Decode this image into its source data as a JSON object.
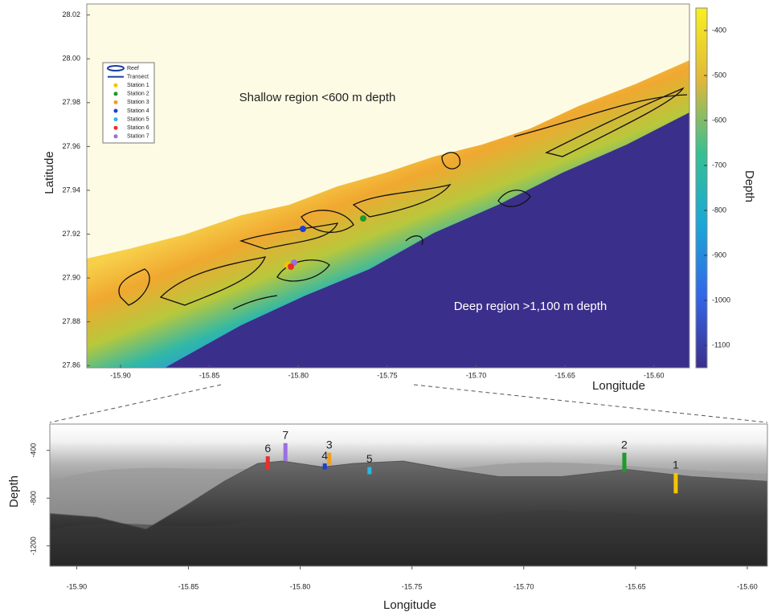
{
  "chart_data": [
    {
      "type": "heatmap",
      "xlabel": "Longitude",
      "ylabel": "Latitude",
      "colorbar_label": "Depth",
      "annotations": [
        "Shallow region <600 m depth",
        "Deep region >1,100 m depth"
      ],
      "xlim": [
        -15.919,
        -15.58
      ],
      "xticks": [
        {
          "value": -15.9,
          "label": "-15.90"
        },
        -15.85,
        {
          "value": -15.8,
          "label": "-15.80"
        },
        -15.75,
        {
          "value": -15.7,
          "label": "-15.70"
        },
        -15.65,
        {
          "value": -15.6,
          "label": "-15.60"
        }
      ],
      "ylim": [
        27.859,
        28.025
      ],
      "yticks": [
        27.86,
        27.88,
        {
          "value": 27.9,
          "label": "27.90"
        },
        27.92,
        27.94,
        27.96,
        27.98,
        {
          "value": 28,
          "label": "28.00"
        },
        28.02
      ],
      "clim": [
        -1150,
        -350
      ],
      "cticks": [
        -1100,
        -1000,
        -900,
        -800,
        -700,
        -600,
        -500,
        -400
      ],
      "legend": [
        {
          "name": "Reef",
          "color": "#1a3fa0"
        },
        {
          "name": "Transect",
          "color": "#1a3fa0"
        },
        {
          "name": "Station 1",
          "color": "#f5c400"
        },
        {
          "name": "Station 2",
          "color": "#1f9a2a"
        },
        {
          "name": "Station 3",
          "color": "#f0a020"
        },
        {
          "name": "Station 4",
          "color": "#1f3fcf"
        },
        {
          "name": "Station 5",
          "color": "#2ab8e0"
        },
        {
          "name": "Station 6",
          "color": "#e8302a"
        },
        {
          "name": "Station 7",
          "color": "#9a70e0"
        }
      ]
    },
    {
      "type": "profile",
      "xlabel": "Longitude",
      "ylabel": "Depth",
      "xlim": [
        -15.912,
        -15.591
      ],
      "xticks": [
        {
          "value": -15.9,
          "label": "-15.90"
        },
        -15.85,
        {
          "value": -15.8,
          "label": "-15.80"
        },
        -15.75,
        {
          "value": -15.7,
          "label": "-15.70"
        },
        -15.65,
        {
          "value": -15.6,
          "label": "-15.60"
        }
      ],
      "ylim": [
        -1370,
        -180
      ],
      "yticks": [
        -400,
        -800,
        -1200
      ],
      "profile": {
        "x": [
          -15.912,
          -15.891,
          -15.869,
          -15.851,
          -15.834,
          -15.819,
          -15.808,
          -15.79,
          -15.776,
          -15.754,
          -15.733,
          -15.711,
          -15.683,
          -15.654,
          -15.625,
          -15.591
        ],
        "values": [
          -930,
          -960,
          -1060,
          -860,
          -660,
          -510,
          -490,
          -540,
          -510,
          -490,
          -560,
          -620,
          -620,
          -560,
          -620,
          -660
        ]
      },
      "stations": [
        {
          "name": "1",
          "color": "#f5c400",
          "x": -15.632,
          "values": [
            -590,
            -760
          ]
        },
        {
          "name": "2",
          "color": "#1f9a2a",
          "x": -15.655,
          "values": [
            -420,
            -580
          ]
        },
        {
          "name": "3",
          "color": "#f0a020",
          "x": -15.787,
          "values": [
            -420,
            -520
          ]
        },
        {
          "name": "4",
          "color": "#1f3fcf",
          "x": -15.789,
          "values": [
            -510,
            -560
          ]
        },
        {
          "name": "5",
          "color": "#2ab8e0",
          "x": -15.769,
          "values": [
            -540,
            -600
          ]
        },
        {
          "name": "6",
          "color": "#e8302a",
          "x": -15.8145,
          "values": [
            -450,
            -560
          ]
        },
        {
          "name": "7",
          "color": "#9a70e0",
          "x": -15.8066,
          "values": [
            -340,
            -490
          ]
        }
      ]
    }
  ]
}
